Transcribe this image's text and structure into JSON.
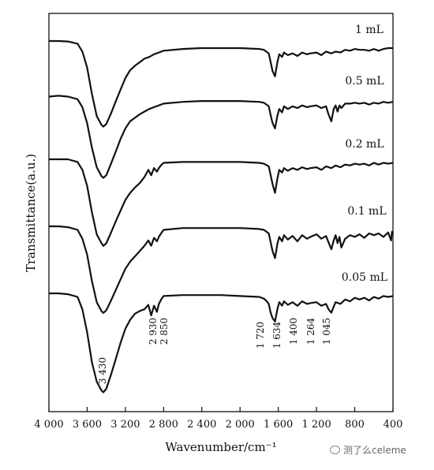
{
  "chart_data": {
    "type": "line",
    "title": "",
    "xlabel": "Wavenumber/cm⁻¹",
    "ylabel": "Transmittance(a.u.)",
    "xlim": [
      4000,
      400
    ],
    "x_reversed": true,
    "x_ticks": [
      4000,
      3600,
      3200,
      2800,
      2400,
      2000,
      1600,
      1200,
      800,
      400
    ],
    "x_tick_labels": [
      "4 000",
      "3 600",
      "3 200",
      "2 800",
      "2 400",
      "2 000",
      "1 600",
      "1 200",
      "800",
      "400"
    ],
    "grid": false,
    "legend": "none",
    "series": [
      {
        "name": "1 mL",
        "x": [
          4000,
          3900,
          3800,
          3700,
          3650,
          3600,
          3550,
          3500,
          3450,
          3430,
          3400,
          3350,
          3300,
          3250,
          3200,
          3150,
          3100,
          3050,
          3000,
          2950,
          2900,
          2850,
          2800,
          2600,
          2400,
          2200,
          2000,
          1800,
          1750,
          1700,
          1680,
          1660,
          1634,
          1610,
          1590,
          1560,
          1540,
          1500,
          1450,
          1400,
          1350,
          1300,
          1264,
          1200,
          1150,
          1100,
          1045,
          1000,
          950,
          900,
          850,
          800,
          750,
          700,
          650,
          600,
          550,
          500,
          450,
          400
        ],
        "y": [
          0,
          0,
          -0.5,
          -3,
          -12,
          -30,
          -60,
          -85,
          -95,
          -97,
          -94,
          -82,
          -68,
          -55,
          -42,
          -33,
          -28,
          -24,
          -20,
          -18,
          -15,
          -13,
          -11,
          -9,
          -8,
          -8,
          -8,
          -9,
          -10,
          -14,
          -24,
          -34,
          -40,
          -24,
          -15,
          -18,
          -13,
          -16,
          -14,
          -17,
          -13,
          -15,
          -14,
          -13,
          -16,
          -12,
          -14,
          -12,
          -13,
          -10,
          -11,
          -9,
          -10,
          -10,
          -11,
          -9,
          -11,
          -9,
          -8,
          -8
        ]
      },
      {
        "name": "0.5 mL",
        "x": [
          4000,
          3900,
          3800,
          3700,
          3650,
          3600,
          3550,
          3500,
          3450,
          3430,
          3400,
          3350,
          3300,
          3250,
          3200,
          3150,
          3100,
          3050,
          3000,
          2950,
          2900,
          2850,
          2800,
          2600,
          2400,
          2200,
          2000,
          1800,
          1750,
          1700,
          1680,
          1660,
          1634,
          1610,
          1590,
          1560,
          1540,
          1500,
          1450,
          1400,
          1350,
          1300,
          1264,
          1200,
          1150,
          1100,
          1075,
          1045,
          1020,
          1000,
          980,
          960,
          940,
          900,
          850,
          800,
          750,
          700,
          650,
          600,
          550,
          500,
          450,
          400
        ],
        "y": [
          -4,
          -3,
          -4,
          -7,
          -16,
          -34,
          -62,
          -84,
          -94,
          -96,
          -93,
          -80,
          -66,
          -52,
          -40,
          -32,
          -28,
          -24,
          -21,
          -18,
          -16,
          -14,
          -12,
          -10,
          -9,
          -9,
          -9,
          -10,
          -11,
          -15,
          -25,
          -34,
          -40,
          -26,
          -18,
          -22,
          -15,
          -18,
          -15,
          -17,
          -14,
          -16,
          -15,
          -14,
          -17,
          -15,
          -24,
          -32,
          -18,
          -14,
          -21,
          -14,
          -17,
          -12,
          -12,
          -11,
          -12,
          -11,
          -13,
          -11,
          -12,
          -10,
          -11,
          -10
        ]
      },
      {
        "name": "0.2 mL",
        "x": [
          4000,
          3900,
          3800,
          3700,
          3650,
          3600,
          3550,
          3500,
          3450,
          3430,
          3400,
          3350,
          3300,
          3250,
          3200,
          3150,
          3100,
          3050,
          3000,
          2960,
          2930,
          2900,
          2870,
          2850,
          2820,
          2800,
          2600,
          2400,
          2200,
          2000,
          1800,
          1750,
          1700,
          1680,
          1660,
          1634,
          1610,
          1590,
          1560,
          1540,
          1500,
          1450,
          1400,
          1350,
          1300,
          1264,
          1200,
          1150,
          1100,
          1045,
          1000,
          950,
          900,
          850,
          800,
          750,
          700,
          650,
          600,
          550,
          500,
          450,
          400
        ],
        "y": [
          0,
          0,
          0,
          -3,
          -12,
          -30,
          -60,
          -85,
          -95,
          -98,
          -95,
          -83,
          -70,
          -58,
          -46,
          -38,
          -32,
          -27,
          -20,
          -12,
          -18,
          -10,
          -14,
          -10,
          -6,
          -4,
          -3,
          -3,
          -3,
          -3,
          -4,
          -5,
          -8,
          -18,
          -28,
          -38,
          -22,
          -12,
          -15,
          -10,
          -13,
          -10,
          -12,
          -9,
          -11,
          -10,
          -9,
          -12,
          -8,
          -10,
          -7,
          -9,
          -6,
          -7,
          -5,
          -6,
          -5,
          -7,
          -4,
          -6,
          -4,
          -5,
          -4
        ]
      },
      {
        "name": "0.1 mL",
        "x": [
          4000,
          3900,
          3800,
          3700,
          3650,
          3600,
          3550,
          3500,
          3450,
          3430,
          3400,
          3350,
          3300,
          3250,
          3200,
          3150,
          3100,
          3050,
          3000,
          2960,
          2930,
          2900,
          2870,
          2850,
          2820,
          2800,
          2600,
          2400,
          2200,
          2000,
          1800,
          1750,
          1700,
          1680,
          1660,
          1634,
          1610,
          1590,
          1560,
          1540,
          1500,
          1450,
          1400,
          1350,
          1300,
          1264,
          1200,
          1150,
          1100,
          1075,
          1045,
          1020,
          1000,
          980,
          960,
          940,
          900,
          850,
          800,
          750,
          700,
          650,
          600,
          550,
          500,
          450,
          420,
          410,
          400
        ],
        "y": [
          0,
          0,
          -1,
          -4,
          -14,
          -32,
          -62,
          -86,
          -96,
          -98,
          -95,
          -84,
          -72,
          -60,
          -48,
          -40,
          -34,
          -28,
          -22,
          -16,
          -22,
          -13,
          -17,
          -12,
          -7,
          -4,
          -2,
          -2,
          -2,
          -2,
          -3,
          -4,
          -8,
          -18,
          -28,
          -36,
          -20,
          -12,
          -17,
          -10,
          -15,
          -11,
          -17,
          -10,
          -14,
          -12,
          -9,
          -14,
          -11,
          -18,
          -26,
          -16,
          -10,
          -19,
          -12,
          -24,
          -14,
          -10,
          -12,
          -9,
          -13,
          -8,
          -10,
          -8,
          -12,
          -7,
          -16,
          -6,
          -8
        ]
      },
      {
        "name": "0.05 mL",
        "x": [
          4000,
          3900,
          3800,
          3700,
          3650,
          3600,
          3550,
          3500,
          3450,
          3430,
          3400,
          3350,
          3300,
          3250,
          3200,
          3150,
          3100,
          3050,
          3000,
          2960,
          2930,
          2900,
          2870,
          2850,
          2820,
          2800,
          2600,
          2400,
          2200,
          2000,
          1800,
          1750,
          1720,
          1700,
          1680,
          1660,
          1634,
          1610,
          1590,
          1560,
          1540,
          1500,
          1450,
          1400,
          1350,
          1300,
          1264,
          1200,
          1150,
          1100,
          1075,
          1045,
          1020,
          1000,
          950,
          900,
          850,
          800,
          750,
          700,
          650,
          600,
          550,
          500,
          450,
          400
        ],
        "y": [
          0,
          0,
          -1,
          -4,
          -18,
          -44,
          -78,
          -100,
          -110,
          -112,
          -108,
          -92,
          -74,
          -56,
          -40,
          -30,
          -23,
          -20,
          -18,
          -13,
          -25,
          -14,
          -21,
          -12,
          -6,
          -3,
          -2,
          -2,
          -2,
          -3,
          -4,
          -6,
          -9,
          -12,
          -22,
          -28,
          -32,
          -18,
          -10,
          -14,
          -9,
          -13,
          -10,
          -14,
          -9,
          -12,
          -11,
          -10,
          -14,
          -12,
          -18,
          -22,
          -15,
          -10,
          -12,
          -7,
          -9,
          -5,
          -7,
          -5,
          -8,
          -4,
          -6,
          -3,
          -4,
          -3
        ]
      }
    ],
    "peak_labels": [
      {
        "text": "3 430",
        "x": 3430
      },
      {
        "text": "2 930",
        "x": 2930
      },
      {
        "text": "2 850",
        "x": 2850
      },
      {
        "text": "1 720",
        "x": 1720
      },
      {
        "text": "1 634",
        "x": 1634
      },
      {
        "text": "1 400",
        "x": 1400
      },
      {
        "text": "1 264",
        "x": 1264
      },
      {
        "text": "1 045",
        "x": 1045
      }
    ]
  },
  "watermark": "测了么celeme",
  "colors": {
    "line": "#111111",
    "axis": "#111111"
  }
}
